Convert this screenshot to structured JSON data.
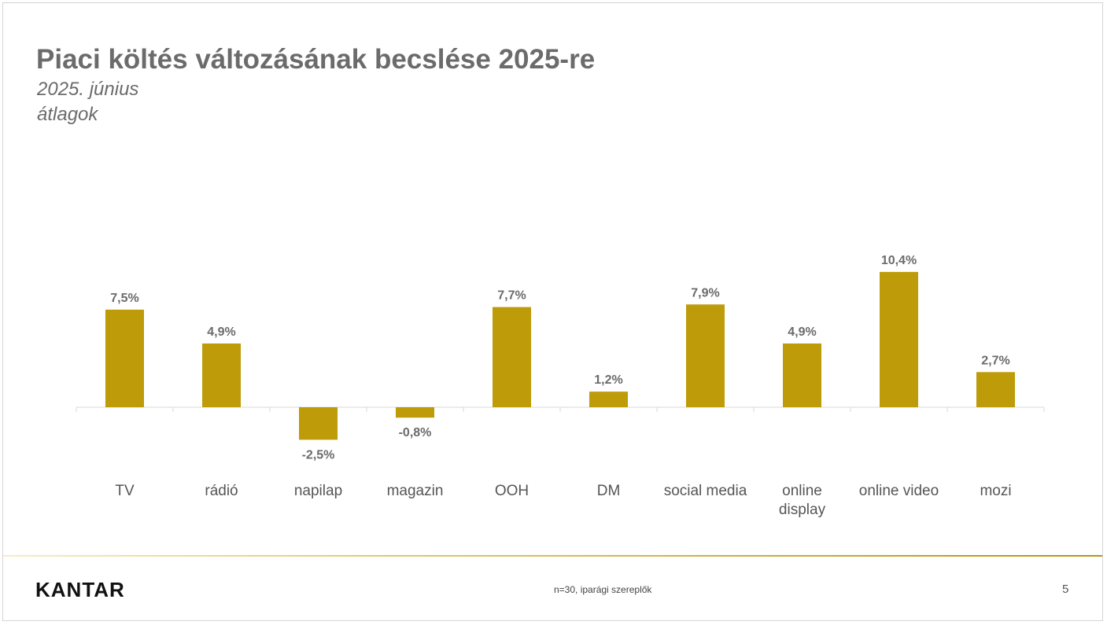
{
  "slide": {
    "title": "Piaci költés változásának becslése 2025-re",
    "subtitle_1": "2025. június",
    "subtitle_2": "átlagok",
    "footnote": "n=30, iparági szereplők",
    "page_number": "5",
    "logo_text": "KANTAR"
  },
  "chart_data": {
    "type": "bar",
    "categories": [
      [
        "TV"
      ],
      [
        "rádió"
      ],
      [
        "napilap"
      ],
      [
        "magazin"
      ],
      [
        "OOH"
      ],
      [
        "DM"
      ],
      [
        "social media"
      ],
      [
        "online",
        "display"
      ],
      [
        "online video"
      ],
      [
        "mozi"
      ]
    ],
    "values": [
      7.5,
      4.9,
      -2.5,
      -0.8,
      7.7,
      1.2,
      7.9,
      4.9,
      10.4,
      2.7
    ],
    "data_labels": [
      "7,5%",
      "4,9%",
      "-2,5%",
      "-0,8%",
      "7,7%",
      "1,2%",
      "7,9%",
      "4,9%",
      "10,4%",
      "2,7%"
    ],
    "bar_color": "#bd9b09",
    "label_color": "#6b6b6b",
    "axis_color": "#d9d9d9",
    "grid": false,
    "legend": "none"
  }
}
